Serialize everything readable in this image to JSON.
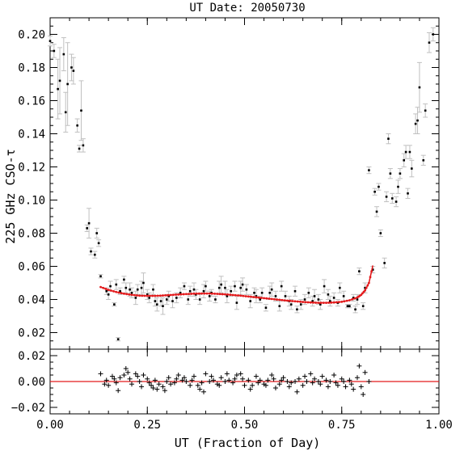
{
  "chart_data": [
    {
      "type": "scatter",
      "title": "UT Date: 20050730",
      "ylabel": "225 GHz CSO-τ",
      "xlim": [
        0.0,
        1.0
      ],
      "ylim": [
        0.01,
        0.21
      ],
      "x_ticks": [
        0.0,
        0.25,
        0.5,
        0.75,
        1.0
      ],
      "x_tick_labels": [
        "0.00",
        "0.25",
        "0.50",
        "0.75",
        "1.00"
      ],
      "y_ticks": [
        0.02,
        0.04,
        0.06,
        0.08,
        0.1,
        0.12,
        0.14,
        0.16,
        0.18,
        0.2
      ],
      "y_tick_labels": [
        "0.02",
        "0.04",
        "0.06",
        "0.08",
        "0.10",
        "0.12",
        "0.14",
        "0.16",
        "0.18",
        "0.20"
      ],
      "grid": false,
      "colors": {
        "points": "#000000",
        "error_bars": "#c0c0c0",
        "fit": "#e41a1c"
      },
      "series": [
        {
          "type": "scatter_errorbar",
          "points": [
            [
              0.0,
              0.196,
              0.003
            ],
            [
              0.01,
              0.19,
              0.004
            ],
            [
              0.02,
              0.167,
              0.018
            ],
            [
              0.025,
              0.172,
              0.02
            ],
            [
              0.035,
              0.188,
              0.01
            ],
            [
              0.04,
              0.153,
              0.012
            ],
            [
              0.045,
              0.17,
              0.025
            ],
            [
              0.055,
              0.18,
              0.008
            ],
            [
              0.06,
              0.178,
              0.008
            ],
            [
              0.07,
              0.145,
              0.004
            ],
            [
              0.075,
              0.131,
              0.002
            ],
            [
              0.08,
              0.154,
              0.018
            ],
            [
              0.085,
              0.133,
              0.004
            ],
            [
              0.095,
              0.083,
              0.002
            ],
            [
              0.1,
              0.086,
              0.009
            ],
            [
              0.105,
              0.069,
              0.002
            ],
            [
              0.115,
              0.067,
              0.002
            ],
            [
              0.12,
              0.08,
              0.003
            ],
            [
              0.125,
              0.074,
              0.002
            ],
            [
              0.13,
              0.054,
              0.001
            ],
            [
              0.145,
              0.045,
              0.002
            ],
            [
              0.15,
              0.043,
              0.003
            ],
            [
              0.155,
              0.048,
              0.003
            ],
            [
              0.165,
              0.037,
              0.001
            ],
            [
              0.17,
              0.049,
              0.003
            ],
            [
              0.175,
              0.016,
              0.001
            ],
            [
              0.18,
              0.045,
              0.002
            ],
            [
              0.19,
              0.052,
              0.002
            ],
            [
              0.195,
              0.047,
              0.003
            ],
            [
              0.205,
              0.046,
              0.004
            ],
            [
              0.21,
              0.044,
              0.003
            ],
            [
              0.22,
              0.041,
              0.004
            ],
            [
              0.225,
              0.046,
              0.003
            ],
            [
              0.235,
              0.047,
              0.004
            ],
            [
              0.24,
              0.05,
              0.006
            ],
            [
              0.25,
              0.043,
              0.003
            ],
            [
              0.255,
              0.041,
              0.003
            ],
            [
              0.265,
              0.046,
              0.003
            ],
            [
              0.27,
              0.039,
              0.003
            ],
            [
              0.275,
              0.037,
              0.004
            ],
            [
              0.285,
              0.039,
              0.003
            ],
            [
              0.29,
              0.036,
              0.005
            ],
            [
              0.3,
              0.04,
              0.003
            ],
            [
              0.305,
              0.042,
              0.003
            ],
            [
              0.315,
              0.039,
              0.004
            ],
            [
              0.325,
              0.041,
              0.003
            ],
            [
              0.335,
              0.044,
              0.003
            ],
            [
              0.345,
              0.048,
              0.002
            ],
            [
              0.355,
              0.04,
              0.003
            ],
            [
              0.36,
              0.045,
              0.003
            ],
            [
              0.37,
              0.046,
              0.004
            ],
            [
              0.375,
              0.043,
              0.003
            ],
            [
              0.385,
              0.04,
              0.003
            ],
            [
              0.395,
              0.045,
              0.004
            ],
            [
              0.4,
              0.048,
              0.003
            ],
            [
              0.41,
              0.042,
              0.003
            ],
            [
              0.415,
              0.044,
              0.002
            ],
            [
              0.425,
              0.04,
              0.002
            ],
            [
              0.435,
              0.047,
              0.004
            ],
            [
              0.44,
              0.049,
              0.005
            ],
            [
              0.45,
              0.047,
              0.004
            ],
            [
              0.455,
              0.042,
              0.004
            ],
            [
              0.465,
              0.045,
              0.003
            ],
            [
              0.475,
              0.048,
              0.003
            ],
            [
              0.48,
              0.038,
              0.004
            ],
            [
              0.49,
              0.047,
              0.004
            ],
            [
              0.495,
              0.049,
              0.004
            ],
            [
              0.505,
              0.046,
              0.003
            ],
            [
              0.515,
              0.039,
              0.004
            ],
            [
              0.525,
              0.044,
              0.003
            ],
            [
              0.53,
              0.042,
              0.004
            ],
            [
              0.54,
              0.04,
              0.002
            ],
            [
              0.545,
              0.044,
              0.003
            ],
            [
              0.555,
              0.035,
              0.002
            ],
            [
              0.565,
              0.044,
              0.004
            ],
            [
              0.57,
              0.046,
              0.004
            ],
            [
              0.58,
              0.042,
              0.003
            ],
            [
              0.59,
              0.036,
              0.003
            ],
            [
              0.595,
              0.048,
              0.003
            ],
            [
              0.605,
              0.042,
              0.003
            ],
            [
              0.615,
              0.039,
              0.003
            ],
            [
              0.62,
              0.037,
              0.003
            ],
            [
              0.63,
              0.045,
              0.003
            ],
            [
              0.635,
              0.034,
              0.002
            ],
            [
              0.645,
              0.037,
              0.003
            ],
            [
              0.655,
              0.04,
              0.003
            ],
            [
              0.665,
              0.044,
              0.003
            ],
            [
              0.675,
              0.039,
              0.003
            ],
            [
              0.68,
              0.042,
              0.004
            ],
            [
              0.69,
              0.04,
              0.003
            ],
            [
              0.695,
              0.037,
              0.003
            ],
            [
              0.705,
              0.048,
              0.004
            ],
            [
              0.715,
              0.043,
              0.003
            ],
            [
              0.72,
              0.039,
              0.003
            ],
            [
              0.73,
              0.041,
              0.003
            ],
            [
              0.74,
              0.038,
              0.002
            ],
            [
              0.745,
              0.047,
              0.003
            ],
            [
              0.755,
              0.042,
              0.003
            ],
            [
              0.765,
              0.036,
              0.001
            ],
            [
              0.77,
              0.036,
              0.001
            ],
            [
              0.78,
              0.041,
              0.002
            ],
            [
              0.785,
              0.034,
              0.002
            ],
            [
              0.79,
              0.04,
              0.003
            ],
            [
              0.795,
              0.057,
              0.002
            ],
            [
              0.805,
              0.036,
              0.002
            ],
            [
              0.81,
              0.047,
              0.003
            ],
            [
              0.82,
              0.118,
              0.002
            ],
            [
              0.83,
              0.058,
              0.002
            ],
            [
              0.835,
              0.105,
              0.002
            ],
            [
              0.84,
              0.093,
              0.003
            ],
            [
              0.845,
              0.108,
              0.002
            ],
            [
              0.85,
              0.08,
              0.002
            ],
            [
              0.86,
              0.062,
              0.003
            ],
            [
              0.865,
              0.102,
              0.003
            ],
            [
              0.87,
              0.137,
              0.003
            ],
            [
              0.875,
              0.116,
              0.003
            ],
            [
              0.88,
              0.101,
              0.003
            ],
            [
              0.89,
              0.099,
              0.003
            ],
            [
              0.895,
              0.108,
              0.004
            ],
            [
              0.9,
              0.116,
              0.003
            ],
            [
              0.91,
              0.124,
              0.004
            ],
            [
              0.915,
              0.129,
              0.004
            ],
            [
              0.92,
              0.104,
              0.003
            ],
            [
              0.925,
              0.129,
              0.004
            ],
            [
              0.93,
              0.119,
              0.005
            ],
            [
              0.94,
              0.146,
              0.006
            ],
            [
              0.945,
              0.148,
              0.008
            ],
            [
              0.95,
              0.168,
              0.015
            ],
            [
              0.96,
              0.124,
              0.003
            ],
            [
              0.965,
              0.154,
              0.004
            ],
            [
              0.975,
              0.195,
              0.006
            ],
            [
              0.985,
              0.2,
              0.004
            ]
          ]
        },
        {
          "type": "fit_line",
          "x": [
            0.13,
            0.15,
            0.17,
            0.19,
            0.21,
            0.23,
            0.25,
            0.27,
            0.29,
            0.31,
            0.33,
            0.35,
            0.37,
            0.39,
            0.41,
            0.43,
            0.45,
            0.47,
            0.49,
            0.51,
            0.53,
            0.55,
            0.57,
            0.59,
            0.61,
            0.63,
            0.65,
            0.67,
            0.69,
            0.71,
            0.73,
            0.75,
            0.77,
            0.79,
            0.8,
            0.81,
            0.82,
            0.83
          ],
          "y": [
            0.0475,
            0.0458,
            0.0445,
            0.0435,
            0.0428,
            0.0423,
            0.0422,
            0.0422,
            0.0424,
            0.0427,
            0.043,
            0.0433,
            0.0435,
            0.0436,
            0.0436,
            0.0434,
            0.0431,
            0.0427,
            0.0423,
            0.0418,
            0.0413,
            0.0408,
            0.0403,
            0.0398,
            0.0393,
            0.0389,
            0.0385,
            0.0382,
            0.038,
            0.038,
            0.0382,
            0.0386,
            0.0395,
            0.0412,
            0.0428,
            0.0455,
            0.05,
            0.0605
          ]
        }
      ]
    },
    {
      "type": "scatter",
      "xlabel": "UT (Fraction of Day)",
      "xlim": [
        0.0,
        1.0
      ],
      "ylim": [
        -0.025,
        0.025
      ],
      "x_ticks": [
        0.0,
        0.25,
        0.5,
        0.75,
        1.0
      ],
      "x_tick_labels": [
        "0.00",
        "0.25",
        "0.50",
        "0.75",
        "1.00"
      ],
      "y_ticks": [
        -0.02,
        0.0,
        0.02
      ],
      "y_tick_labels": [
        "−0.02",
        "0.00",
        "0.02"
      ],
      "zero_line": true,
      "colors": {
        "points": "#000000",
        "zero_line": "#e41a1c"
      },
      "series": [
        {
          "type": "residual_plus",
          "x": [
            0.13,
            0.14,
            0.145,
            0.15,
            0.16,
            0.165,
            0.17,
            0.175,
            0.18,
            0.19,
            0.195,
            0.2,
            0.205,
            0.21,
            0.22,
            0.225,
            0.23,
            0.235,
            0.24,
            0.25,
            0.255,
            0.26,
            0.265,
            0.27,
            0.275,
            0.28,
            0.29,
            0.295,
            0.3,
            0.305,
            0.31,
            0.32,
            0.325,
            0.33,
            0.34,
            0.345,
            0.35,
            0.36,
            0.365,
            0.37,
            0.38,
            0.385,
            0.39,
            0.395,
            0.4,
            0.41,
            0.415,
            0.42,
            0.43,
            0.435,
            0.44,
            0.45,
            0.455,
            0.46,
            0.47,
            0.475,
            0.48,
            0.49,
            0.495,
            0.5,
            0.51,
            0.515,
            0.52,
            0.53,
            0.535,
            0.54,
            0.55,
            0.555,
            0.56,
            0.57,
            0.575,
            0.58,
            0.59,
            0.595,
            0.6,
            0.61,
            0.615,
            0.62,
            0.63,
            0.635,
            0.64,
            0.65,
            0.655,
            0.66,
            0.67,
            0.675,
            0.68,
            0.69,
            0.695,
            0.7,
            0.71,
            0.715,
            0.72,
            0.73,
            0.735,
            0.74,
            0.75,
            0.755,
            0.76,
            0.77,
            0.775,
            0.78,
            0.79,
            0.795,
            0.8,
            0.805,
            0.81,
            0.82
          ],
          "y": [
            0.006,
            -0.002,
            0.001,
            -0.003,
            0.004,
            0.002,
            -0.001,
            -0.007,
            0.003,
            0.005,
            0.01,
            0.007,
            0.002,
            -0.002,
            0.006,
            0.004,
            0.0,
            -0.004,
            0.005,
            0.002,
            -0.001,
            -0.003,
            -0.005,
            0.001,
            -0.006,
            -0.002,
            -0.004,
            -0.007,
            0.0,
            0.003,
            -0.002,
            -0.001,
            0.002,
            0.005,
            0.001,
            0.003,
            0.0,
            -0.003,
            0.001,
            0.004,
            -0.003,
            -0.006,
            -0.001,
            -0.008,
            0.006,
            0.0,
            0.004,
            0.001,
            -0.002,
            -0.003,
            0.003,
            0.0,
            0.006,
            0.001,
            -0.001,
            0.002,
            0.005,
            0.006,
            0.002,
            -0.003,
            0.001,
            -0.006,
            -0.003,
            0.004,
            -0.001,
            0.001,
            -0.002,
            -0.003,
            0.001,
            0.005,
            0.002,
            -0.005,
            -0.002,
            0.001,
            0.003,
            0.0,
            -0.004,
            -0.001,
            0.0,
            -0.008,
            0.002,
            -0.003,
            0.004,
            0.0,
            0.006,
            -0.001,
            0.002,
            0.0,
            -0.002,
            0.004,
            0.001,
            -0.004,
            0.0,
            0.005,
            -0.001,
            -0.003,
            0.002,
            0.0,
            -0.004,
            0.001,
            -0.002,
            -0.006,
            0.003,
            0.012,
            -0.004,
            -0.01,
            0.007,
            0.0
          ]
        }
      ]
    }
  ]
}
